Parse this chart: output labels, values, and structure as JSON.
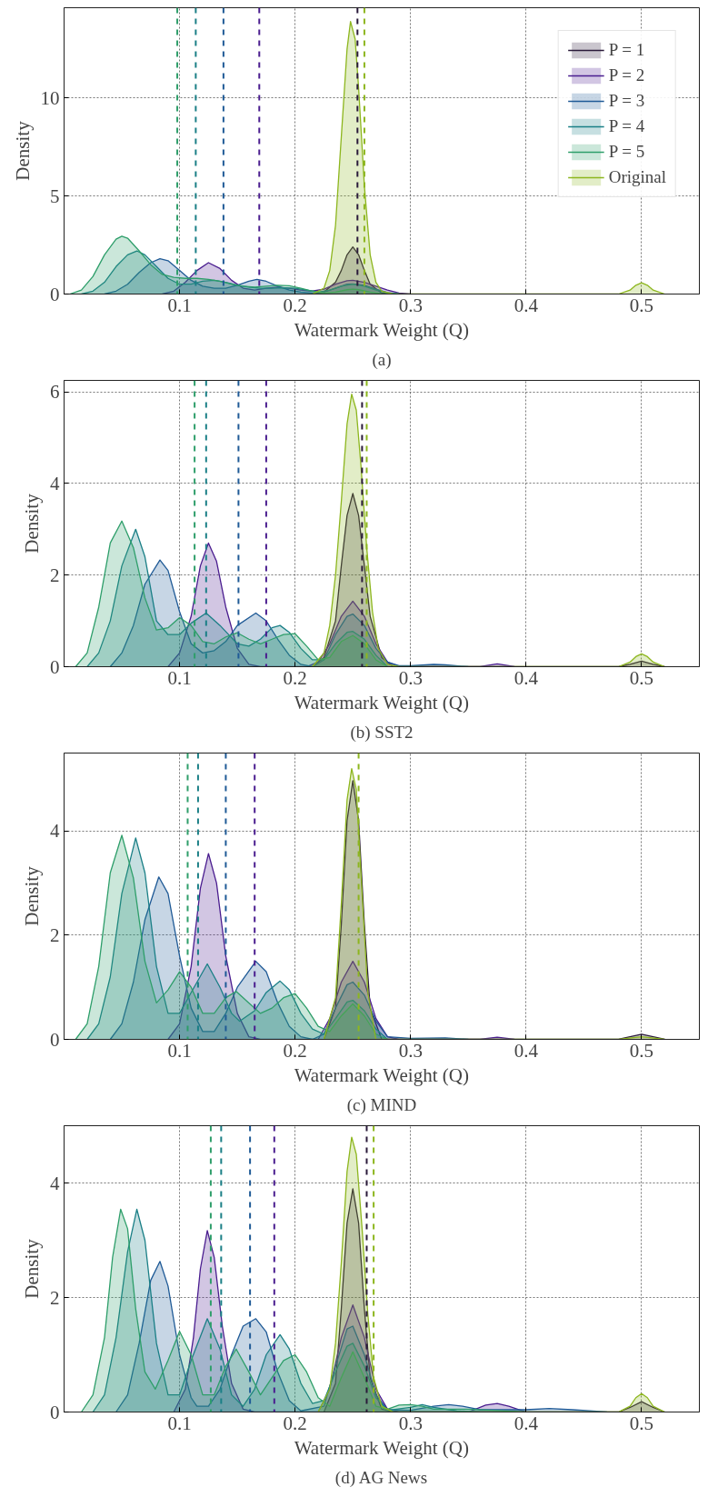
{
  "chart_data": [
    {
      "type": "area",
      "title": "(a)",
      "xlabel": "Watermark Weight (Q)",
      "ylabel": "Density",
      "xlim": [
        0.0,
        0.55
      ],
      "ylim": [
        0,
        14.6
      ],
      "xticks": [
        0.1,
        0.2,
        0.3,
        0.4,
        0.5
      ],
      "yticks": [
        0,
        5,
        10
      ],
      "grid": true,
      "legend": "top right",
      "line_style": "solid",
      "series": [
        {
          "name": "P = 1",
          "color": "#2a1a3a",
          "x": [
            0.215,
            0.225,
            0.235,
            0.24,
            0.245,
            0.25,
            0.255,
            0.26,
            0.265,
            0.275,
            0.285
          ],
          "values": [
            0,
            0.1,
            0.6,
            1.2,
            2.0,
            2.4,
            2.0,
            1.2,
            0.5,
            0.05,
            0
          ]
        },
        {
          "name": "P = 2",
          "color": "#4a1d8f",
          "x": [
            0.085,
            0.095,
            0.105,
            0.115,
            0.125,
            0.135,
            0.145,
            0.155,
            0.165,
            0.175,
            0.185,
            0.195,
            0.205,
            0.215,
            0.225,
            0.235,
            0.245,
            0.25,
            0.26,
            0.27,
            0.28,
            0.29,
            0.3
          ],
          "values": [
            0,
            0.15,
            0.6,
            1.2,
            1.6,
            1.3,
            0.7,
            0.3,
            0.2,
            0.3,
            0.35,
            0.3,
            0.2,
            0.15,
            0.25,
            0.5,
            0.68,
            0.7,
            0.6,
            0.4,
            0.2,
            0.05,
            0
          ]
        },
        {
          "name": "P = 3",
          "color": "#1f5a96",
          "x": [
            0.035,
            0.045,
            0.055,
            0.065,
            0.075,
            0.083,
            0.09,
            0.1,
            0.11,
            0.12,
            0.13,
            0.14,
            0.15,
            0.16,
            0.167,
            0.175,
            0.185,
            0.195,
            0.205,
            0.215,
            0.225,
            0.235,
            0.245,
            0.25,
            0.26,
            0.27,
            0.28,
            0.29
          ],
          "values": [
            0,
            0.15,
            0.5,
            1.1,
            1.6,
            1.8,
            1.7,
            1.2,
            0.7,
            0.4,
            0.3,
            0.3,
            0.45,
            0.65,
            0.75,
            0.65,
            0.4,
            0.2,
            0.1,
            0.05,
            0.1,
            0.3,
            0.5,
            0.52,
            0.45,
            0.25,
            0.08,
            0
          ]
        },
        {
          "name": "P = 4",
          "color": "#1a7f86",
          "x": [
            0.015,
            0.025,
            0.035,
            0.045,
            0.055,
            0.063,
            0.07,
            0.08,
            0.09,
            0.1,
            0.11,
            0.12,
            0.13,
            0.14,
            0.15,
            0.16,
            0.17,
            0.18,
            0.19,
            0.2,
            0.21,
            0.22,
            0.23,
            0.24,
            0.25,
            0.26,
            0.27,
            0.28,
            0.29
          ],
          "values": [
            0,
            0.15,
            0.6,
            1.4,
            2.0,
            2.2,
            2.0,
            1.4,
            0.8,
            0.5,
            0.5,
            0.65,
            0.7,
            0.6,
            0.45,
            0.35,
            0.3,
            0.3,
            0.32,
            0.3,
            0.2,
            0.1,
            0.2,
            0.4,
            0.5,
            0.4,
            0.2,
            0.05,
            0
          ]
        },
        {
          "name": "P = 5",
          "color": "#2e9e6a",
          "x": [
            0.005,
            0.015,
            0.025,
            0.035,
            0.045,
            0.05,
            0.055,
            0.065,
            0.075,
            0.085,
            0.095,
            0.105,
            0.115,
            0.125,
            0.135,
            0.145,
            0.155,
            0.165,
            0.175,
            0.185,
            0.195,
            0.205,
            0.215,
            0.225,
            0.235,
            0.245,
            0.25,
            0.255,
            0.265,
            0.275,
            0.29
          ],
          "values": [
            0,
            0.2,
            0.9,
            2.0,
            2.8,
            2.95,
            2.85,
            2.2,
            1.5,
            1.0,
            0.85,
            0.8,
            0.8,
            0.75,
            0.65,
            0.5,
            0.4,
            0.35,
            0.4,
            0.45,
            0.42,
            0.3,
            0.15,
            0.05,
            0.1,
            0.22,
            0.25,
            0.22,
            0.1,
            0.02,
            0
          ]
        },
        {
          "name": "Original",
          "color": "#8db61e",
          "x": [
            0.215,
            0.225,
            0.23,
            0.235,
            0.24,
            0.245,
            0.248,
            0.252,
            0.255,
            0.26,
            0.265,
            0.27,
            0.275,
            0.285,
            0.3,
            0.48,
            0.49,
            0.495,
            0.5,
            0.505,
            0.51,
            0.52
          ],
          "values": [
            0,
            0.3,
            1.2,
            3.5,
            8.0,
            12.5,
            13.9,
            13.0,
            10.5,
            5.5,
            2.0,
            0.6,
            0.15,
            0,
            0,
            0,
            0.2,
            0.45,
            0.57,
            0.45,
            0.2,
            0
          ]
        }
      ],
      "ref_lines": [
        {
          "axis": "x",
          "value": 0.254,
          "color": "#2a1a3a",
          "line_style": "dashed"
        },
        {
          "axis": "x",
          "value": 0.169,
          "color": "#4a1d8f",
          "line_style": "dashed"
        },
        {
          "axis": "x",
          "value": 0.138,
          "color": "#1f5a96",
          "line_style": "dashed"
        },
        {
          "axis": "x",
          "value": 0.114,
          "color": "#1a7f86",
          "line_style": "dashed"
        },
        {
          "axis": "x",
          "value": 0.098,
          "color": "#2e9e6a",
          "line_style": "dashed"
        },
        {
          "axis": "x",
          "value": 0.26,
          "color": "#8db61e",
          "line_style": "dashed"
        }
      ]
    },
    {
      "type": "area",
      "title": "(b) SST2",
      "xlabel": "Watermark Weight (Q)",
      "ylabel": "Density",
      "xlim": [
        0.0,
        0.55
      ],
      "ylim": [
        0,
        6.25
      ],
      "xticks": [
        0.1,
        0.2,
        0.3,
        0.4,
        0.5
      ],
      "yticks": [
        0,
        2,
        4,
        6
      ],
      "grid": true,
      "line_style": "solid",
      "series": [
        {
          "color": "#2a1a3a",
          "x": [
            0.215,
            0.225,
            0.235,
            0.24,
            0.245,
            0.25,
            0.255,
            0.26,
            0.265,
            0.275,
            0.285,
            0.48,
            0.49,
            0.5,
            0.51,
            0.52
          ],
          "values": [
            0,
            0.2,
            1.0,
            2.2,
            3.3,
            3.78,
            3.3,
            2.2,
            1.1,
            0.2,
            0,
            0,
            0.05,
            0.12,
            0.05,
            0
          ]
        },
        {
          "color": "#4a1d8f",
          "x": [
            0.09,
            0.1,
            0.11,
            0.118,
            0.125,
            0.132,
            0.14,
            0.15,
            0.16,
            0.17,
            0.21,
            0.22,
            0.23,
            0.24,
            0.25,
            0.26,
            0.27,
            0.28,
            0.29,
            0.36,
            0.375,
            0.39
          ],
          "values": [
            0,
            0.3,
            1.1,
            2.2,
            2.7,
            2.3,
            1.3,
            0.4,
            0.05,
            0,
            0,
            0.1,
            0.5,
            1.1,
            1.43,
            1.1,
            0.5,
            0.1,
            0,
            0,
            0.06,
            0
          ]
        },
        {
          "color": "#1f5a96",
          "x": [
            0.04,
            0.05,
            0.06,
            0.07,
            0.083,
            0.09,
            0.1,
            0.11,
            0.12,
            0.13,
            0.14,
            0.15,
            0.166,
            0.175,
            0.185,
            0.195,
            0.205,
            0.215,
            0.225,
            0.235,
            0.245,
            0.25,
            0.26,
            0.27,
            0.28,
            0.29,
            0.3,
            0.32,
            0.33,
            0.35
          ],
          "values": [
            0,
            0.3,
            0.9,
            1.8,
            2.33,
            2.1,
            1.2,
            0.5,
            0.3,
            0.35,
            0.55,
            0.9,
            1.17,
            1.0,
            0.6,
            0.25,
            0.05,
            0,
            0.15,
            0.7,
            1.1,
            1.15,
            0.9,
            0.4,
            0.1,
            0.02,
            0.02,
            0.05,
            0.04,
            0
          ]
        },
        {
          "color": "#1a7f86",
          "x": [
            0.02,
            0.03,
            0.04,
            0.05,
            0.062,
            0.07,
            0.08,
            0.09,
            0.1,
            0.11,
            0.123,
            0.135,
            0.15,
            0.16,
            0.17,
            0.18,
            0.187,
            0.195,
            0.205,
            0.215,
            0.225,
            0.235,
            0.245,
            0.25,
            0.26,
            0.27,
            0.28
          ],
          "values": [
            0,
            0.3,
            1.0,
            2.2,
            3.0,
            2.4,
            1.0,
            0.7,
            0.7,
            0.95,
            1.17,
            0.9,
            0.5,
            0.45,
            0.6,
            0.85,
            0.9,
            0.75,
            0.4,
            0.15,
            0.15,
            0.5,
            0.75,
            0.77,
            0.6,
            0.25,
            0
          ]
        },
        {
          "color": "#2e9e6a",
          "x": [
            0.01,
            0.02,
            0.03,
            0.04,
            0.05,
            0.06,
            0.07,
            0.08,
            0.09,
            0.1,
            0.11,
            0.12,
            0.13,
            0.14,
            0.15,
            0.16,
            0.17,
            0.18,
            0.19,
            0.2,
            0.21,
            0.22,
            0.23,
            0.24,
            0.25,
            0.26,
            0.27,
            0.28
          ],
          "values": [
            0,
            0.3,
            1.3,
            2.7,
            3.18,
            2.6,
            1.5,
            0.8,
            0.85,
            1.07,
            0.9,
            0.55,
            0.5,
            0.65,
            0.74,
            0.6,
            0.5,
            0.6,
            0.7,
            0.72,
            0.45,
            0.15,
            0.2,
            0.55,
            0.68,
            0.5,
            0.15,
            0
          ]
        },
        {
          "color": "#8db61e",
          "x": [
            0.215,
            0.225,
            0.23,
            0.235,
            0.24,
            0.245,
            0.249,
            0.253,
            0.257,
            0.262,
            0.267,
            0.272,
            0.28,
            0.29,
            0.48,
            0.49,
            0.495,
            0.5,
            0.505,
            0.51,
            0.52
          ],
          "values": [
            0,
            0.3,
            0.9,
            2.0,
            3.6,
            5.3,
            5.95,
            5.6,
            4.4,
            2.6,
            1.2,
            0.4,
            0.05,
            0,
            0,
            0.1,
            0.22,
            0.28,
            0.22,
            0.1,
            0
          ]
        }
      ],
      "ref_lines": [
        {
          "axis": "x",
          "value": 0.258,
          "color": "#2a1a3a",
          "line_style": "dashed"
        },
        {
          "axis": "x",
          "value": 0.175,
          "color": "#4a1d8f",
          "line_style": "dashed"
        },
        {
          "axis": "x",
          "value": 0.151,
          "color": "#1f5a96",
          "line_style": "dashed"
        },
        {
          "axis": "x",
          "value": 0.123,
          "color": "#1a7f86",
          "line_style": "dashed"
        },
        {
          "axis": "x",
          "value": 0.113,
          "color": "#2e9e6a",
          "line_style": "dashed"
        },
        {
          "axis": "x",
          "value": 0.262,
          "color": "#8db61e",
          "line_style": "dashed"
        }
      ]
    },
    {
      "type": "area",
      "title": "(c) MIND",
      "xlabel": "Watermark Weight (Q)",
      "ylabel": "Density",
      "xlim": [
        0.0,
        0.55
      ],
      "ylim": [
        0,
        5.5
      ],
      "xticks": [
        0.1,
        0.2,
        0.3,
        0.4,
        0.5
      ],
      "yticks": [
        0,
        2,
        4
      ],
      "grid": true,
      "line_style": "solid",
      "series": [
        {
          "color": "#2a1a3a",
          "x": [
            0.225,
            0.235,
            0.24,
            0.245,
            0.25,
            0.255,
            0.26,
            0.265,
            0.275,
            0.48,
            0.49,
            0.5,
            0.51,
            0.52
          ],
          "values": [
            0,
            0.6,
            2.2,
            4.2,
            4.97,
            4.2,
            2.2,
            0.6,
            0,
            0,
            0.05,
            0.1,
            0.05,
            0
          ]
        },
        {
          "color": "#4a1d8f",
          "x": [
            0.09,
            0.1,
            0.11,
            0.118,
            0.125,
            0.132,
            0.14,
            0.15,
            0.16,
            0.17,
            0.22,
            0.23,
            0.24,
            0.25,
            0.26,
            0.27,
            0.28,
            0.29,
            0.36,
            0.375,
            0.39
          ],
          "values": [
            0,
            0.3,
            1.4,
            2.9,
            3.57,
            3.0,
            1.6,
            0.5,
            0.05,
            0,
            0,
            0.4,
            1.1,
            1.5,
            1.1,
            0.4,
            0.05,
            0,
            0,
            0.04,
            0
          ]
        },
        {
          "color": "#1f5a96",
          "x": [
            0.04,
            0.05,
            0.06,
            0.07,
            0.082,
            0.09,
            0.1,
            0.11,
            0.12,
            0.13,
            0.14,
            0.15,
            0.166,
            0.175,
            0.185,
            0.195,
            0.205,
            0.215,
            0.225,
            0.235,
            0.245,
            0.25,
            0.26,
            0.27,
            0.28,
            0.3,
            0.33,
            0.35
          ],
          "values": [
            0,
            0.3,
            1.1,
            2.3,
            3.12,
            2.8,
            1.6,
            0.6,
            0.15,
            0.15,
            0.5,
            1.0,
            1.5,
            1.3,
            0.7,
            0.25,
            0.05,
            0,
            0.1,
            0.6,
            1.05,
            1.1,
            0.85,
            0.35,
            0.05,
            0.02,
            0.03,
            0
          ]
        },
        {
          "color": "#1a7f86",
          "x": [
            0.02,
            0.03,
            0.04,
            0.05,
            0.062,
            0.07,
            0.08,
            0.09,
            0.1,
            0.11,
            0.124,
            0.135,
            0.145,
            0.152,
            0.165,
            0.175,
            0.187,
            0.195,
            0.205,
            0.215,
            0.225,
            0.235,
            0.245,
            0.25,
            0.26,
            0.27,
            0.28
          ],
          "values": [
            0,
            0.3,
            1.2,
            2.8,
            3.87,
            3.2,
            1.4,
            0.5,
            0.5,
            0.9,
            1.45,
            1.0,
            0.5,
            0.35,
            0.55,
            0.9,
            1.12,
            0.95,
            0.5,
            0.2,
            0.1,
            0.4,
            0.72,
            0.75,
            0.55,
            0.2,
            0
          ]
        },
        {
          "color": "#2e9e6a",
          "x": [
            0.01,
            0.02,
            0.03,
            0.04,
            0.05,
            0.06,
            0.07,
            0.08,
            0.09,
            0.1,
            0.11,
            0.12,
            0.13,
            0.14,
            0.149,
            0.16,
            0.17,
            0.18,
            0.19,
            0.2,
            0.21,
            0.22,
            0.23,
            0.24,
            0.25,
            0.26,
            0.27,
            0.28
          ],
          "values": [
            0,
            0.3,
            1.4,
            3.2,
            3.92,
            3.1,
            1.5,
            0.7,
            0.95,
            1.3,
            1.0,
            0.5,
            0.5,
            0.8,
            0.92,
            0.7,
            0.5,
            0.6,
            0.8,
            0.88,
            0.6,
            0.25,
            0.15,
            0.45,
            0.68,
            0.45,
            0.1,
            0
          ]
        },
        {
          "color": "#8db61e",
          "x": [
            0.225,
            0.235,
            0.24,
            0.245,
            0.249,
            0.253,
            0.258,
            0.263,
            0.27,
            0.48,
            0.5,
            0.52
          ],
          "values": [
            0,
            0.8,
            2.6,
            4.6,
            5.2,
            4.8,
            2.8,
            0.9,
            0,
            0,
            0.05,
            0
          ]
        }
      ],
      "ref_lines": [
        {
          "axis": "x",
          "value": 0.165,
          "color": "#4a1d8f",
          "line_style": "dashed"
        },
        {
          "axis": "x",
          "value": 0.14,
          "color": "#1f5a96",
          "line_style": "dashed"
        },
        {
          "axis": "x",
          "value": 0.116,
          "color": "#1a7f86",
          "line_style": "dashed"
        },
        {
          "axis": "x",
          "value": 0.107,
          "color": "#2e9e6a",
          "line_style": "dashed"
        },
        {
          "axis": "x",
          "value": 0.255,
          "color": "#8db61e",
          "line_style": "dashed"
        }
      ]
    },
    {
      "type": "area",
      "title": "(d) AG News",
      "xlabel": "Watermark Weight (Q)",
      "ylabel": "Density",
      "xlim": [
        0.0,
        0.55
      ],
      "ylim": [
        0,
        5.0
      ],
      "xticks": [
        0.1,
        0.2,
        0.3,
        0.4,
        0.5
      ],
      "yticks": [
        0,
        2,
        4
      ],
      "grid": true,
      "line_style": "solid",
      "series": [
        {
          "color": "#2a1a3a",
          "x": [
            0.225,
            0.235,
            0.24,
            0.245,
            0.25,
            0.255,
            0.26,
            0.265,
            0.275,
            0.285,
            0.48,
            0.49,
            0.5,
            0.51,
            0.52
          ],
          "values": [
            0,
            0.5,
            1.8,
            3.3,
            3.9,
            3.3,
            1.8,
            0.6,
            0.05,
            0,
            0,
            0.08,
            0.18,
            0.08,
            0
          ]
        },
        {
          "color": "#4a1d8f",
          "x": [
            0.095,
            0.105,
            0.112,
            0.118,
            0.124,
            0.13,
            0.137,
            0.145,
            0.155,
            0.165,
            0.22,
            0.23,
            0.24,
            0.25,
            0.26,
            0.27,
            0.28,
            0.29,
            0.35,
            0.365,
            0.375,
            0.385,
            0.4
          ],
          "values": [
            0,
            0.4,
            1.3,
            2.5,
            3.17,
            2.7,
            1.5,
            0.5,
            0.05,
            0,
            0,
            0.4,
            1.3,
            1.87,
            1.3,
            0.4,
            0.05,
            0,
            0,
            0.12,
            0.15,
            0.1,
            0
          ]
        },
        {
          "color": "#1f5a96",
          "x": [
            0.045,
            0.055,
            0.065,
            0.075,
            0.083,
            0.09,
            0.1,
            0.11,
            0.115,
            0.125,
            0.135,
            0.145,
            0.155,
            0.166,
            0.175,
            0.185,
            0.195,
            0.205,
            0.225,
            0.235,
            0.245,
            0.25,
            0.26,
            0.27,
            0.28,
            0.3,
            0.32,
            0.333,
            0.345,
            0.36,
            0.4,
            0.42,
            0.44,
            0.47
          ],
          "values": [
            0,
            0.3,
            1.2,
            2.3,
            2.63,
            2.2,
            1.0,
            0.25,
            0.1,
            0.1,
            0.4,
            1.0,
            1.5,
            1.63,
            1.4,
            0.7,
            0.2,
            0.02,
            0.1,
            0.8,
            1.45,
            1.5,
            1.0,
            0.3,
            0.04,
            0.03,
            0.1,
            0.13,
            0.1,
            0.04,
            0.04,
            0.06,
            0.04,
            0
          ]
        },
        {
          "color": "#1a7f86",
          "x": [
            0.025,
            0.035,
            0.045,
            0.055,
            0.063,
            0.07,
            0.08,
            0.09,
            0.1,
            0.11,
            0.124,
            0.135,
            0.145,
            0.155,
            0.165,
            0.175,
            0.187,
            0.195,
            0.205,
            0.215,
            0.225,
            0.235,
            0.245,
            0.25,
            0.26,
            0.27,
            0.28,
            0.3,
            0.31,
            0.32,
            0.34,
            0.36
          ],
          "values": [
            0,
            0.3,
            1.3,
            2.8,
            3.54,
            3.0,
            1.2,
            0.3,
            0.3,
            0.9,
            1.63,
            1.1,
            0.3,
            0.1,
            0.4,
            1.0,
            1.35,
            1.1,
            0.5,
            0.15,
            0.2,
            0.7,
            1.15,
            1.2,
            0.8,
            0.25,
            0.03,
            0.08,
            0.13,
            0.08,
            0.02,
            0
          ]
        },
        {
          "color": "#2e9e6a",
          "x": [
            0.015,
            0.025,
            0.035,
            0.042,
            0.049,
            0.055,
            0.062,
            0.07,
            0.079,
            0.09,
            0.1,
            0.11,
            0.12,
            0.13,
            0.14,
            0.149,
            0.16,
            0.17,
            0.18,
            0.19,
            0.2,
            0.21,
            0.22,
            0.23,
            0.24,
            0.25,
            0.26,
            0.27,
            0.28,
            0.29,
            0.3,
            0.31,
            0.32,
            0.35,
            0.4
          ],
          "values": [
            0,
            0.3,
            1.3,
            2.7,
            3.54,
            3.2,
            1.8,
            0.7,
            0.4,
            0.9,
            1.41,
            1.0,
            0.3,
            0.3,
            0.8,
            1.1,
            0.7,
            0.3,
            0.6,
            0.9,
            1.0,
            0.7,
            0.25,
            0.1,
            0.6,
            1.05,
            0.6,
            0.1,
            0.05,
            0.12,
            0.13,
            0.1,
            0.05,
            0.05,
            0
          ]
        },
        {
          "color": "#8db61e",
          "x": [
            0.22,
            0.23,
            0.235,
            0.24,
            0.245,
            0.249,
            0.253,
            0.258,
            0.263,
            0.268,
            0.275,
            0.285,
            0.48,
            0.49,
            0.495,
            0.5,
            0.505,
            0.51,
            0.52
          ],
          "values": [
            0,
            0.4,
            1.2,
            2.6,
            4.2,
            4.8,
            4.5,
            3.2,
            1.7,
            0.6,
            0.1,
            0,
            0,
            0.1,
            0.25,
            0.32,
            0.25,
            0.1,
            0
          ]
        }
      ],
      "ref_lines": [
        {
          "axis": "x",
          "value": 0.262,
          "color": "#2a1a3a",
          "line_style": "dashed"
        },
        {
          "axis": "x",
          "value": 0.182,
          "color": "#4a1d8f",
          "line_style": "dashed"
        },
        {
          "axis": "x",
          "value": 0.161,
          "color": "#1f5a96",
          "line_style": "dashed"
        },
        {
          "axis": "x",
          "value": 0.136,
          "color": "#1a7f86",
          "line_style": "dashed"
        },
        {
          "axis": "x",
          "value": 0.127,
          "color": "#2e9e6a",
          "line_style": "dashed"
        },
        {
          "axis": "x",
          "value": 0.268,
          "color": "#8db61e",
          "line_style": "dashed"
        }
      ]
    }
  ]
}
